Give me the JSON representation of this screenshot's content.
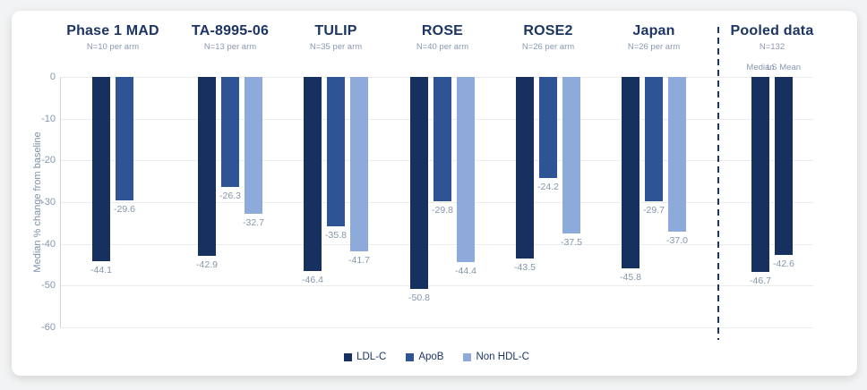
{
  "chart_data": {
    "type": "bar",
    "title": "",
    "ylabel": "Median % change from baseline",
    "ylim": [
      -60,
      0
    ],
    "yticks": [
      0,
      -10,
      -20,
      -30,
      -40,
      -50,
      -60
    ],
    "grid": true,
    "legend_position": "bottom",
    "legend": [
      "LDL-C",
      "ApoB",
      "Non HDL-C"
    ],
    "series_colors": {
      "LDL-C": "#16305f",
      "ApoB": "#2f5496",
      "Non HDL-C": "#8eaadb"
    },
    "groups": [
      {
        "name": "Phase 1 MAD",
        "subtitle": "N=10 per arm",
        "bars": [
          {
            "series": "LDL-C",
            "value": -44.1,
            "label": "-44.1"
          },
          {
            "series": "ApoB",
            "value": -29.6,
            "label": "-29.6"
          }
        ]
      },
      {
        "name": "TA-8995-06",
        "subtitle": "N=13 per arm",
        "bars": [
          {
            "series": "LDL-C",
            "value": -42.9,
            "label": "-42.9"
          },
          {
            "series": "ApoB",
            "value": -26.3,
            "label": "-26.3"
          },
          {
            "series": "Non HDL-C",
            "value": -32.7,
            "label": "-32.7"
          }
        ]
      },
      {
        "name": "TULIP",
        "subtitle": "N=35 per arm",
        "bars": [
          {
            "series": "LDL-C",
            "value": -46.4,
            "label": "-46.4"
          },
          {
            "series": "ApoB",
            "value": -35.8,
            "label": "-35.8"
          },
          {
            "series": "Non HDL-C",
            "value": -41.7,
            "label": "-41.7"
          }
        ]
      },
      {
        "name": "ROSE",
        "subtitle": "N=40 per arm",
        "bars": [
          {
            "series": "LDL-C",
            "value": -50.8,
            "label": "-50.8"
          },
          {
            "series": "ApoB",
            "value": -29.8,
            "label": "-29.8"
          },
          {
            "series": "Non HDL-C",
            "value": -44.4,
            "label": "-44.4"
          }
        ]
      },
      {
        "name": "ROSE2",
        "subtitle": "N=26 per arm",
        "bars": [
          {
            "series": "LDL-C",
            "value": -43.5,
            "label": "-43.5"
          },
          {
            "series": "ApoB",
            "value": -24.2,
            "label": "-24.2"
          },
          {
            "series": "Non HDL-C",
            "value": -37.5,
            "label": "-37.5"
          }
        ]
      },
      {
        "name": "Japan",
        "subtitle": "N=26 per arm",
        "bars": [
          {
            "series": "LDL-C",
            "value": -45.8,
            "label": "-45.8"
          },
          {
            "series": "ApoB",
            "value": -29.7,
            "label": "-29.7"
          },
          {
            "series": "Non HDL-C",
            "value": -37.0,
            "label": "-37.0"
          }
        ]
      },
      {
        "name": "Pooled data",
        "subtitle": "N=132",
        "separated_by_dashed_line": true,
        "bars": [
          {
            "series": "LDL-C",
            "column_label": "Median",
            "value": -46.7,
            "label": "-46.7"
          },
          {
            "series": "LDL-C",
            "column_label": "LS Mean",
            "value": -42.6,
            "label": "-42.6"
          }
        ]
      }
    ]
  }
}
